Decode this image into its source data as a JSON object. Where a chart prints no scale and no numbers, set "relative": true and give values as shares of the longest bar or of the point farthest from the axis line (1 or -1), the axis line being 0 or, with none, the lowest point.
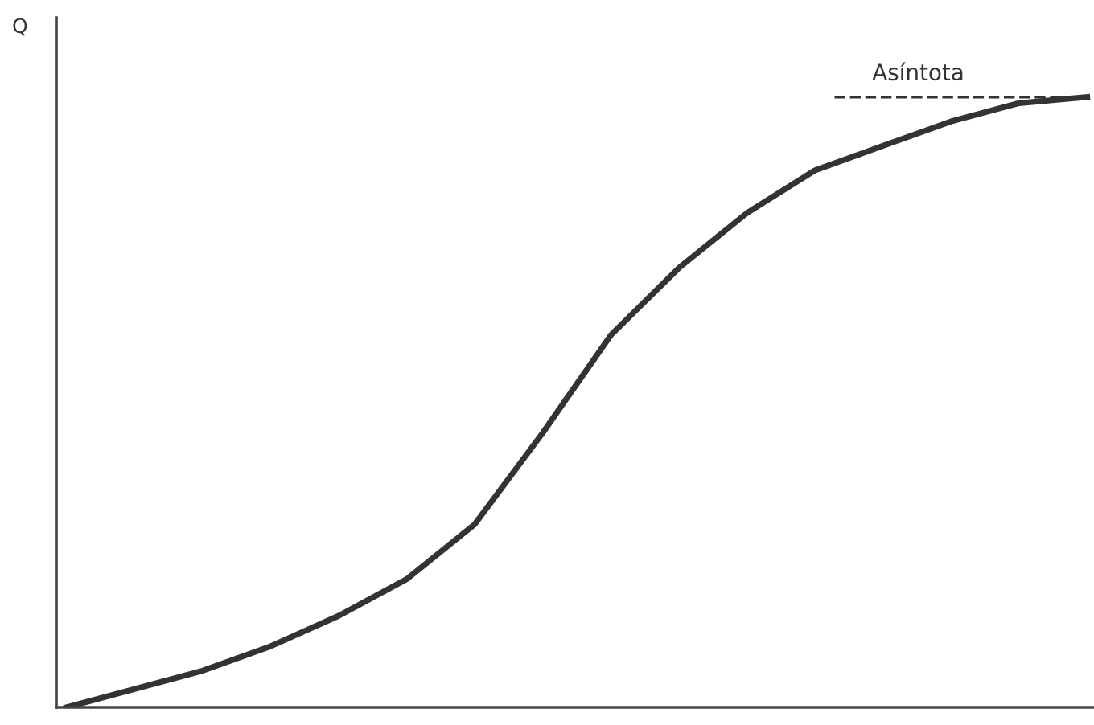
{
  "chart_data": {
    "type": "line",
    "relative": true,
    "ylabel": "Q",
    "categories": [
      null,
      null,
      null,
      null,
      null,
      null,
      null,
      null,
      null,
      null,
      null,
      null,
      null,
      null,
      null,
      null
    ],
    "series": [
      {
        "color": "#333333",
        "values": [
          0,
          0.03,
          0.06,
          0.1,
          0.15,
          0.21,
          0.3,
          0.45,
          0.61,
          0.72,
          0.81,
          0.88,
          0.92,
          0.96,
          0.99,
          1
        ]
      }
    ],
    "ref_lines": [
      {
        "axis": "y",
        "value": 1,
        "label": "Asíntota",
        "line_style": "dashed",
        "color": "#333333"
      }
    ],
    "legend": false,
    "marker": "none",
    "line_style": "solid"
  }
}
